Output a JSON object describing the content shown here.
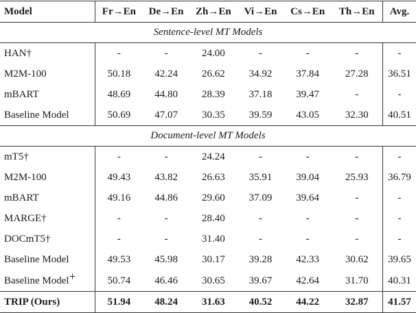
{
  "table": {
    "header": [
      "Model",
      "Fr→En",
      "De→En",
      "Zh→En",
      "Vi→En",
      "Cs→En",
      "Th→En",
      "Avg."
    ],
    "sections": [
      {
        "title": "Sentence-level MT Models",
        "rows": [
          {
            "model": "HAN†",
            "values": [
              "-",
              "-",
              "24.00",
              "-",
              "-",
              "-"
            ],
            "avg": "-"
          },
          {
            "model": "M2M-100",
            "values": [
              "50.18",
              "42.24",
              "26.62",
              "34.92",
              "37.84",
              "27.28"
            ],
            "avg": "36.51"
          },
          {
            "model": "mBART",
            "values": [
              "48.69",
              "44.80",
              "28.39",
              "37.18",
              "39.47",
              "-"
            ],
            "avg": "-"
          },
          {
            "model": "Baseline Model",
            "values": [
              "50.69",
              "47.07",
              "30.35",
              "39.59",
              "43.05",
              "32.30"
            ],
            "avg": "40.51"
          }
        ]
      },
      {
        "title": "Document-level MT Models",
        "rows": [
          {
            "model": "mT5†",
            "values": [
              "-",
              "-",
              "24.24",
              "-",
              "-",
              "-"
            ],
            "avg": "-"
          },
          {
            "model": "M2M-100",
            "values": [
              "49.43",
              "43.82",
              "26.63",
              "35.91",
              "39.04",
              "25.93"
            ],
            "avg": "36.79"
          },
          {
            "model": "mBART",
            "values": [
              "49.16",
              "44.86",
              "29.60",
              "37.09",
              "39.64",
              "-"
            ],
            "avg": "-"
          },
          {
            "model": "MARGE†",
            "values": [
              "-",
              "-",
              "28.40",
              "-",
              "-",
              "-"
            ],
            "avg": "-"
          },
          {
            "model": "DOCmT5†",
            "values": [
              "-",
              "-",
              "31.40",
              "-",
              "-",
              "-"
            ],
            "avg": "-"
          },
          {
            "model": "Baseline Model",
            "values": [
              "49.53",
              "45.98",
              "30.17",
              "39.28",
              "42.33",
              "30.62"
            ],
            "avg": "39.65"
          },
          {
            "model": "Baseline Model",
            "model_sup": "+",
            "values": [
              "50.74",
              "46.46",
              "30.65",
              "39.67",
              "42.64",
              "31.70"
            ],
            "avg": "40.31"
          }
        ]
      }
    ],
    "ours": {
      "model": "TRIP (Ours)",
      "values": [
        "51.94",
        "48.24",
        "31.63",
        "40.52",
        "44.22",
        "32.87"
      ],
      "avg": "41.57"
    }
  }
}
